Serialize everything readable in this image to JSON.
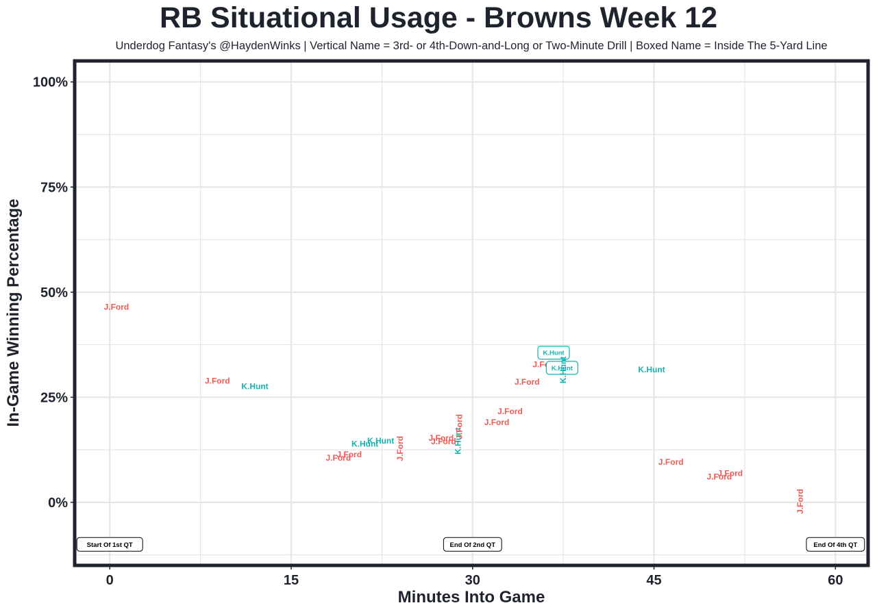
{
  "chart_data": {
    "type": "scatter",
    "title": "RB Situational Usage - Browns Week 12",
    "subtitle": "Underdog Fantasy's @HaydenWinks | Vertical Name = 3rd- or 4th-Down-and-Long or Two-Minute Drill | Boxed Name = Inside The 5-Yard Line",
    "xlabel": "Minutes Into Game",
    "ylabel": "In-Game Winning Percentage",
    "xlim": [
      -2.9,
      62.7
    ],
    "ylim": [
      -15,
      105
    ],
    "xticks": [
      0,
      15,
      30,
      45,
      60
    ],
    "xtick_labels": [
      "0",
      "15",
      "30",
      "45",
      "60"
    ],
    "yticks": [
      0,
      25,
      50,
      75,
      100
    ],
    "ytick_labels": [
      "0%",
      "25%",
      "50%",
      "75%",
      "100%"
    ],
    "grid": true,
    "colors": {
      "J.Ford": "#f05a55",
      "K.Hunt": "#16b1b0",
      "frame": "#1f232e",
      "grid": "#e6e6e6"
    },
    "points": [
      {
        "x": 0.55,
        "y": 46.5,
        "label": "J.Ford",
        "vertical": false,
        "boxed": false
      },
      {
        "x": 8.9,
        "y": 28.9,
        "label": "J.Ford",
        "vertical": false,
        "boxed": false
      },
      {
        "x": 12.0,
        "y": 27.6,
        "label": "K.Hunt",
        "vertical": false,
        "boxed": false
      },
      {
        "x": 18.9,
        "y": 10.6,
        "label": "J.Ford",
        "vertical": false,
        "boxed": false
      },
      {
        "x": 19.8,
        "y": 11.4,
        "label": "J.Ford",
        "vertical": false,
        "boxed": false
      },
      {
        "x": 21.1,
        "y": 13.9,
        "label": "K.Hunt",
        "vertical": false,
        "boxed": false
      },
      {
        "x": 22.4,
        "y": 14.6,
        "label": "K.Hunt",
        "vertical": false,
        "boxed": false
      },
      {
        "x": 24.0,
        "y": 12.8,
        "label": "J.Ford",
        "vertical": true,
        "boxed": false
      },
      {
        "x": 27.4,
        "y": 15.3,
        "label": "J.Ford",
        "vertical": false,
        "boxed": false
      },
      {
        "x": 27.6,
        "y": 14.5,
        "label": "J.Ford",
        "vertical": false,
        "boxed": false
      },
      {
        "x": 28.8,
        "y": 14.6,
        "label": "K.Hunt",
        "vertical": true,
        "boxed": false
      },
      {
        "x": 28.9,
        "y": 18.0,
        "label": "J.Ford",
        "vertical": true,
        "boxed": false
      },
      {
        "x": 32.0,
        "y": 19.0,
        "label": "J.Ford",
        "vertical": false,
        "boxed": false
      },
      {
        "x": 33.1,
        "y": 21.6,
        "label": "J.Ford",
        "vertical": false,
        "boxed": false
      },
      {
        "x": 34.5,
        "y": 28.6,
        "label": "J.Ford",
        "vertical": false,
        "boxed": false
      },
      {
        "x": 36.0,
        "y": 32.8,
        "label": "J.Ford",
        "vertical": false,
        "boxed": false
      },
      {
        "x": 36.7,
        "y": 35.6,
        "label": "K.Hunt",
        "vertical": false,
        "boxed": true
      },
      {
        "x": 37.4,
        "y": 32.0,
        "label": "K.Hunt",
        "vertical": false,
        "boxed": true
      },
      {
        "x": 37.5,
        "y": 31.5,
        "label": "K.Hunt",
        "vertical": true,
        "boxed": false
      },
      {
        "x": 44.8,
        "y": 31.6,
        "label": "K.Hunt",
        "vertical": false,
        "boxed": false
      },
      {
        "x": 46.4,
        "y": 9.6,
        "label": "J.Ford",
        "vertical": false,
        "boxed": false
      },
      {
        "x": 50.4,
        "y": 6.1,
        "label": "J.Ford",
        "vertical": false,
        "boxed": false
      },
      {
        "x": 51.3,
        "y": 6.9,
        "label": "J.Ford",
        "vertical": false,
        "boxed": false
      },
      {
        "x": 57.1,
        "y": 0.2,
        "label": "J.Ford",
        "vertical": true,
        "boxed": false
      }
    ],
    "annotations": [
      {
        "x": 0,
        "y": -10,
        "text": "Start Of 1st QT"
      },
      {
        "x": 30,
        "y": -10,
        "text": "End Of 2nd QT"
      },
      {
        "x": 60,
        "y": -10,
        "text": "End Of 4th QT"
      }
    ]
  }
}
